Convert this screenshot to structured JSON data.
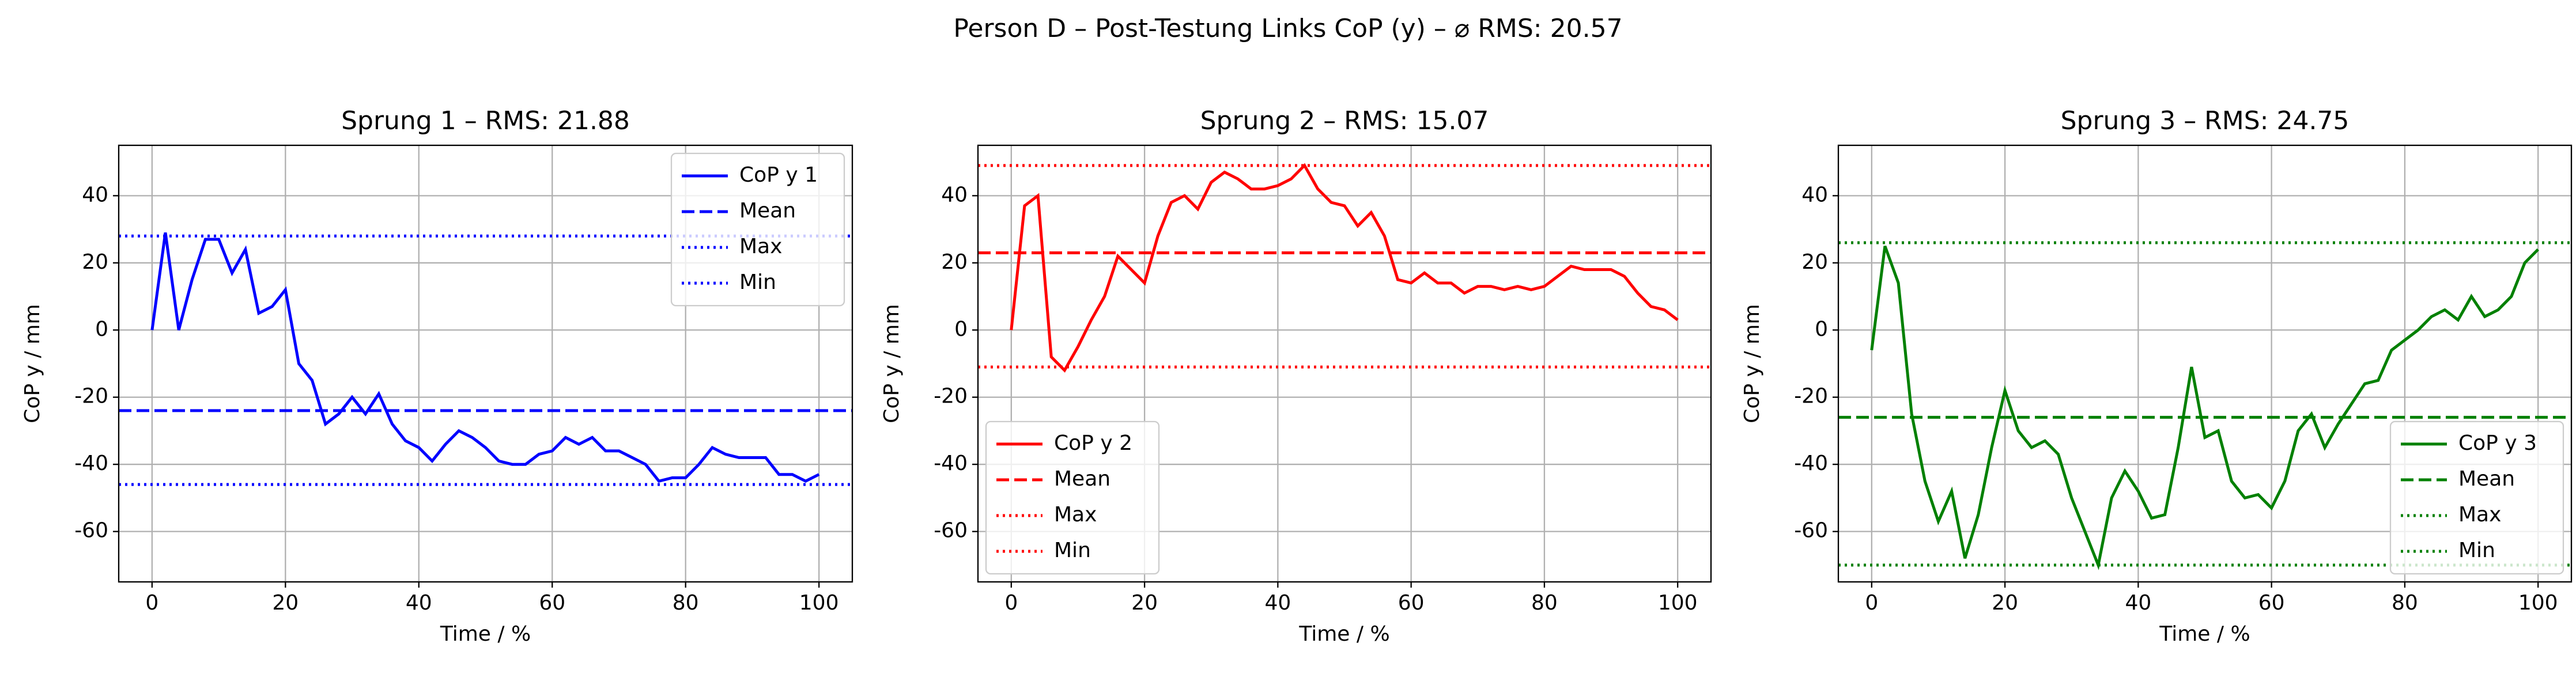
{
  "title": "Person D – Post-Testung Links CoP (y) – ⌀ RMS: 20.57",
  "chart_data": [
    {
      "type": "line",
      "title": "Sprung 1 – RMS: 21.88",
      "xlabel": "Time / %",
      "ylabel": "CoP y / mm",
      "x": [
        0,
        2,
        4,
        6,
        8,
        10,
        12,
        14,
        16,
        18,
        20,
        22,
        24,
        26,
        28,
        30,
        32,
        34,
        36,
        38,
        40,
        42,
        44,
        46,
        48,
        50,
        52,
        54,
        56,
        58,
        60,
        62,
        64,
        66,
        68,
        70,
        72,
        74,
        76,
        78,
        80,
        82,
        84,
        86,
        88,
        90,
        92,
        94,
        96,
        98,
        100
      ],
      "series": [
        {
          "name": "CoP y 1",
          "color": "#0000ff",
          "values": [
            0,
            29,
            0,
            15,
            27,
            27,
            17,
            24,
            5,
            7,
            12,
            -10,
            -15,
            -28,
            -25,
            -20,
            -25,
            -19,
            -28,
            -33,
            -35,
            -39,
            -34,
            -30,
            -32,
            -35,
            -39,
            -40,
            -40,
            -37,
            -36,
            -32,
            -34,
            -32,
            -36,
            -36,
            -38,
            -40,
            -45,
            -44,
            -44,
            -40,
            -35,
            -37,
            -38,
            -38,
            -38,
            -43,
            -43,
            -45,
            -43
          ]
        }
      ],
      "hlines": [
        {
          "name": "Mean",
          "value": -24,
          "style": "dashed"
        },
        {
          "name": "Max",
          "value": 28,
          "style": "dotted"
        },
        {
          "name": "Min",
          "value": -46,
          "style": "dotted"
        }
      ],
      "xlim": [
        -5,
        105
      ],
      "ylim": [
        -75,
        55
      ],
      "xticks": [
        0,
        20,
        40,
        60,
        80,
        100
      ],
      "yticks": [
        -60,
        -40,
        -20,
        0,
        20,
        40
      ],
      "grid": true,
      "legend": "upper right"
    },
    {
      "type": "line",
      "title": "Sprung 2 – RMS: 15.07",
      "xlabel": "Time / %",
      "ylabel": "CoP y / mm",
      "x": [
        0,
        2,
        4,
        6,
        8,
        10,
        12,
        14,
        16,
        18,
        20,
        22,
        24,
        26,
        28,
        30,
        32,
        34,
        36,
        38,
        40,
        42,
        44,
        46,
        48,
        50,
        52,
        54,
        56,
        58,
        60,
        62,
        64,
        66,
        68,
        70,
        72,
        74,
        76,
        78,
        80,
        82,
        84,
        86,
        88,
        90,
        92,
        94,
        96,
        98,
        100
      ],
      "series": [
        {
          "name": "CoP y 2",
          "color": "#ff0000",
          "values": [
            0,
            37,
            40,
            -8,
            -12,
            -5,
            3,
            10,
            22,
            18,
            14,
            28,
            38,
            40,
            36,
            44,
            47,
            45,
            42,
            42,
            43,
            45,
            49,
            42,
            38,
            37,
            31,
            35,
            28,
            15,
            14,
            17,
            14,
            14,
            11,
            13,
            13,
            12,
            13,
            12,
            13,
            16,
            19,
            18,
            18,
            18,
            16,
            11,
            7,
            6,
            3
          ]
        }
      ],
      "hlines": [
        {
          "name": "Mean",
          "value": 23,
          "style": "dashed"
        },
        {
          "name": "Max",
          "value": 49,
          "style": "dotted"
        },
        {
          "name": "Min",
          "value": -11,
          "style": "dotted"
        }
      ],
      "xlim": [
        -5,
        105
      ],
      "ylim": [
        -75,
        55
      ],
      "xticks": [
        0,
        20,
        40,
        60,
        80,
        100
      ],
      "yticks": [
        -60,
        -40,
        -20,
        0,
        20,
        40
      ],
      "grid": true,
      "legend": "lower left"
    },
    {
      "type": "line",
      "title": "Sprung 3 – RMS: 24.75",
      "xlabel": "Time / %",
      "ylabel": "CoP y / mm",
      "x": [
        0,
        2,
        4,
        6,
        8,
        10,
        12,
        14,
        16,
        18,
        20,
        22,
        24,
        26,
        28,
        30,
        32,
        34,
        36,
        38,
        40,
        42,
        44,
        46,
        48,
        50,
        52,
        54,
        56,
        58,
        60,
        62,
        64,
        66,
        68,
        70,
        72,
        74,
        76,
        78,
        80,
        82,
        84,
        86,
        88,
        90,
        92,
        94,
        96,
        98,
        100
      ],
      "series": [
        {
          "name": "CoP y 3",
          "color": "#008000",
          "values": [
            -6,
            25,
            14,
            -25,
            -45,
            -57,
            -48,
            -68,
            -55,
            -35,
            -18,
            -30,
            -35,
            -33,
            -37,
            -50,
            -60,
            -70,
            -50,
            -42,
            -48,
            -56,
            -55,
            -35,
            -11,
            -32,
            -30,
            -45,
            -50,
            -49,
            -53,
            -45,
            -30,
            -25,
            -35,
            -28,
            -22,
            -16,
            -15,
            -6,
            -3,
            0,
            4,
            6,
            3,
            10,
            4,
            6,
            10,
            20,
            24
          ]
        }
      ],
      "hlines": [
        {
          "name": "Mean",
          "value": -26,
          "style": "dashed"
        },
        {
          "name": "Max",
          "value": 26,
          "style": "dotted"
        },
        {
          "name": "Min",
          "value": -70,
          "style": "dotted"
        }
      ],
      "xlim": [
        -5,
        105
      ],
      "ylim": [
        -75,
        55
      ],
      "xticks": [
        0,
        20,
        40,
        60,
        80,
        100
      ],
      "yticks": [
        -60,
        -40,
        -20,
        0,
        20,
        40
      ],
      "grid": true,
      "legend": "lower right"
    }
  ]
}
